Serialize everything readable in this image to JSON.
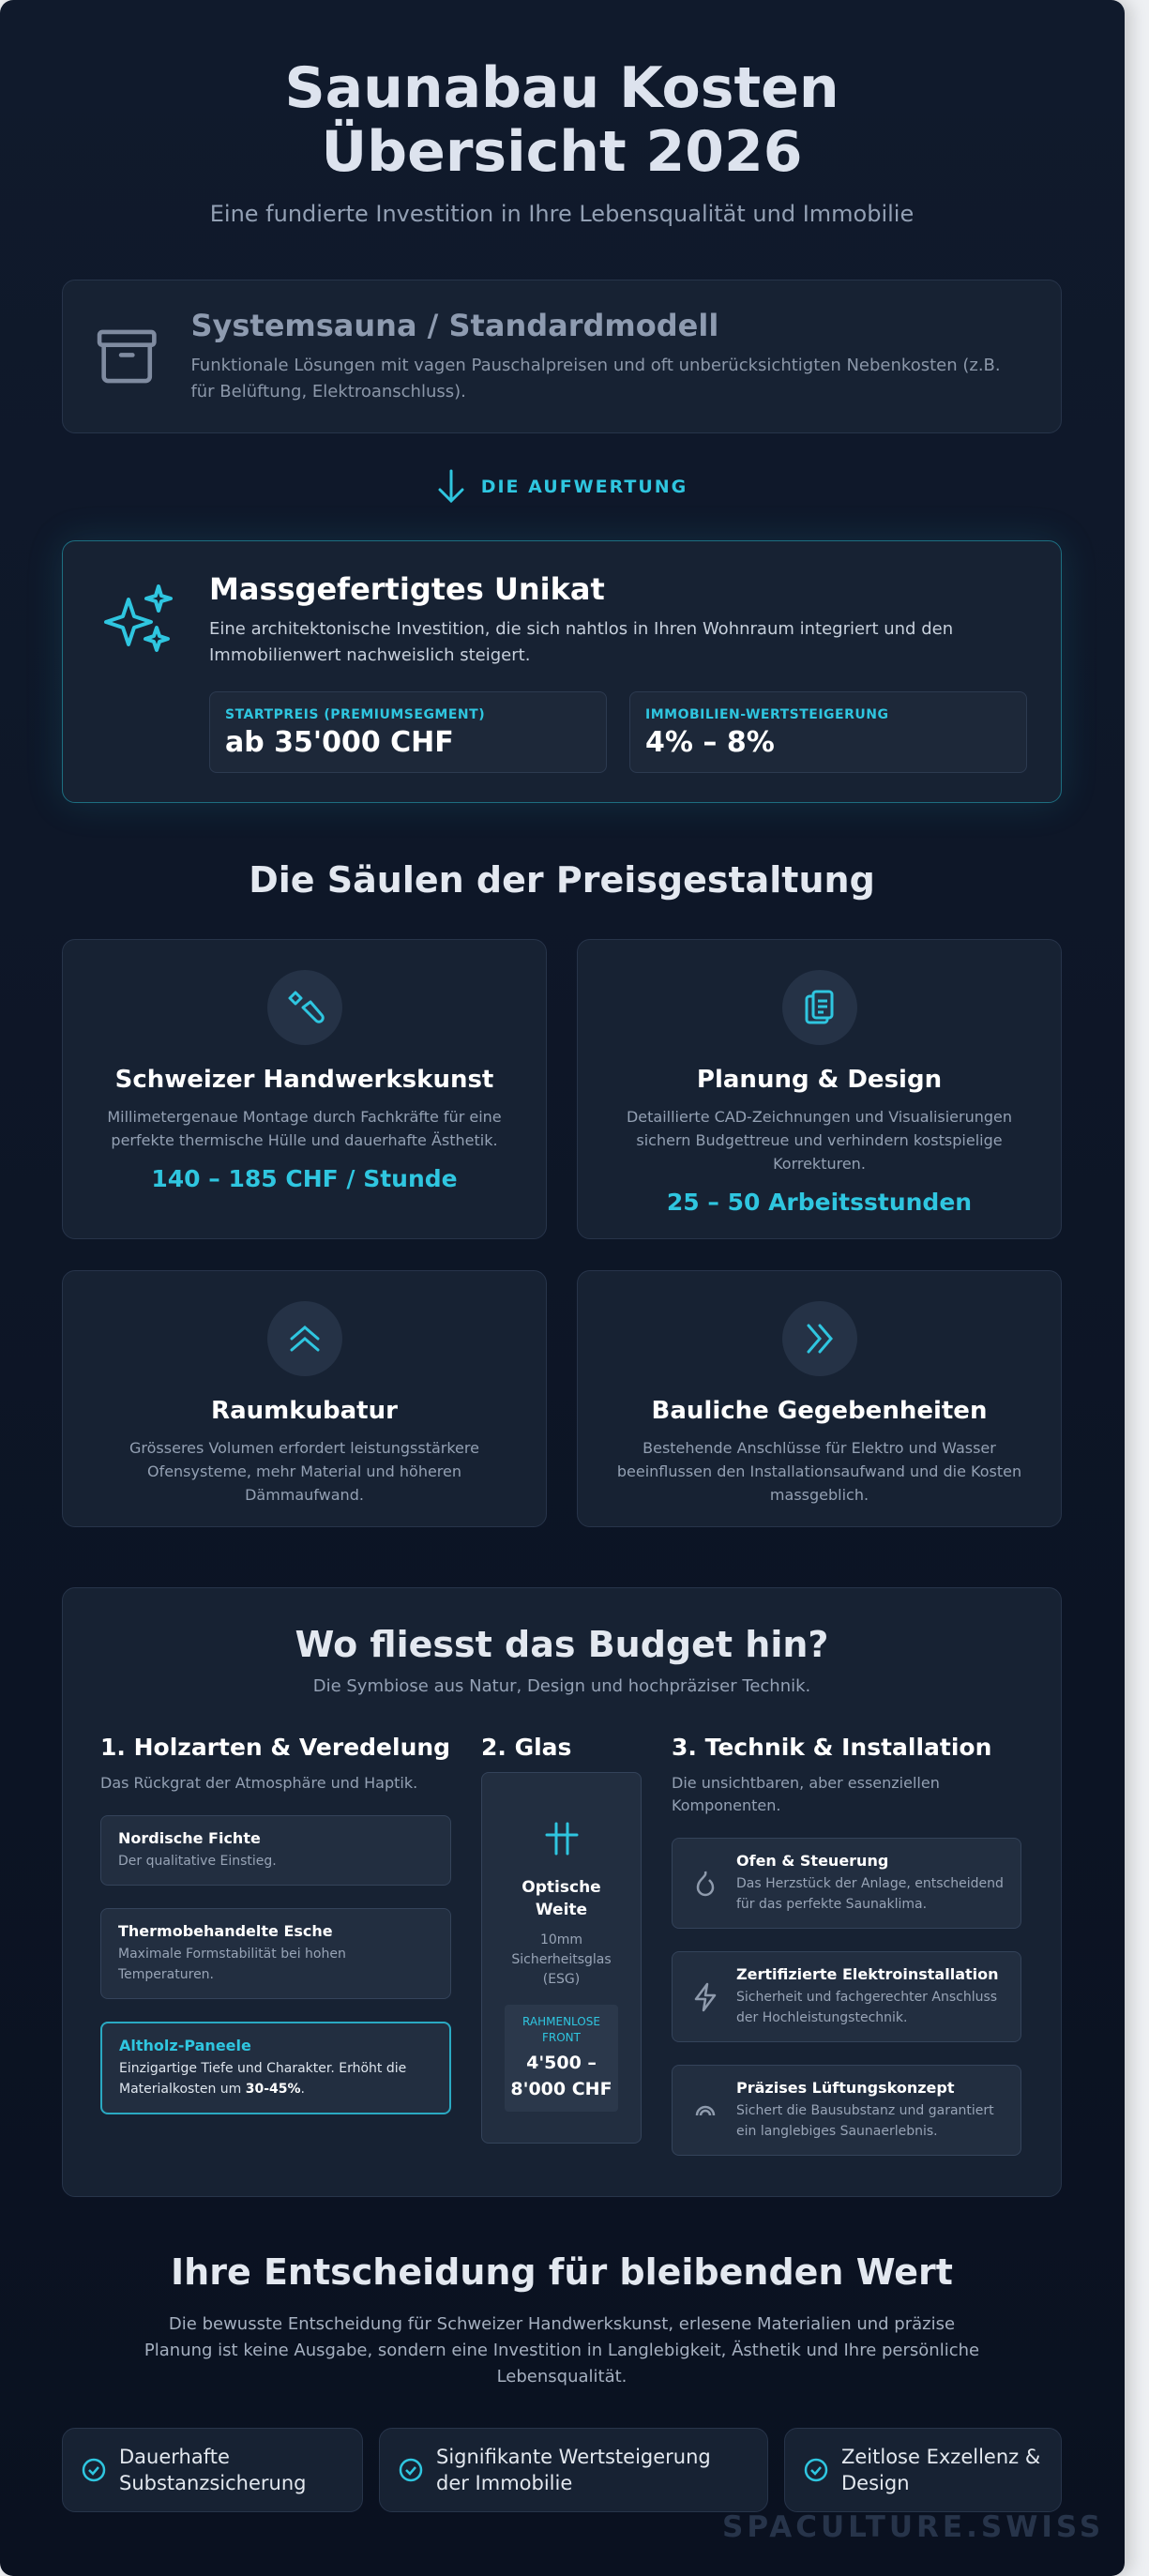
{
  "header": {
    "title": "Saunabau Kosten Übersicht 2026",
    "subtitle": "Eine fundierte Investition in Ihre Lebensqualität und Immobilie"
  },
  "standard": {
    "title": "Systemsauna / Standardmodell",
    "text": "Funktionale Lösungen mit vagen Pauschalpreisen und oft unberücksichtigten Nebenkosten (z.B. für Belüftung, Elektroanschluss)."
  },
  "divider": "DIE AUFWERTUNG",
  "custom": {
    "title": "Massgefertigtes Unikat",
    "text": "Eine architektonische Investition, die sich nahtlos in Ihren Wohnraum integriert und den Immobilienwert nachweislich steigert.",
    "stats": [
      {
        "label": "STARTPREIS (PREMIUMSEGMENT)",
        "value": "ab 35'000 CHF"
      },
      {
        "label": "IMMOBILIEN-WERTSTEIGERUNG",
        "value": "4% – 8%"
      }
    ]
  },
  "pillars": {
    "heading": "Die Säulen der Preisgestaltung",
    "items": [
      {
        "title": "Schweizer Handwerkskunst",
        "text": "Millimetergenaue Montage durch Fachkräfte für eine perfekte thermische Hülle und dauerhafte Ästhetik.",
        "value": "140 – 185 CHF / Stunde"
      },
      {
        "title": "Planung & Design",
        "text": "Detaillierte CAD-Zeichnungen und Visualisierungen sichern Budgettreue und verhindern kostspielige Korrekturen.",
        "value": "25 – 50 Arbeitsstunden"
      },
      {
        "title": "Raumkubatur",
        "text": "Grösseres Volumen erfordert leistungsstärkere Ofensysteme, mehr Material und höheren Dämmaufwand."
      },
      {
        "title": "Bauliche Gegebenheiten",
        "text": "Bestehende Anschlüsse für Elektro und Wasser beeinflussen den Installationsaufwand und die Kosten massgeblich."
      }
    ]
  },
  "budget": {
    "title": "Wo fliesst das Budget hin?",
    "subtitle": "Die Symbiose aus Natur, Design und hochpräziser Technik.",
    "wood": {
      "heading": "1. Holzarten & Veredelung",
      "text": "Das Rückgrat der Atmosphäre und Haptik.",
      "items": [
        {
          "title": "Nordische Fichte",
          "text": "Der qualitative Einstieg."
        },
        {
          "title": "Thermobehandelte Esche",
          "text": "Maximale Formstabilität bei hohen Temperaturen."
        },
        {
          "title": "Altholz-Paneele",
          "text_before": "Einzigartige Tiefe und Charakter. Erhöht die Materialkosten um ",
          "text_bold": "30-45%",
          "text_after": "."
        }
      ]
    },
    "glass": {
      "heading": "2. Glas",
      "title": "Optische Weite",
      "text": "10mm Sicherheitsglas (ESG)",
      "label": "RAHMENLOSE FRONT",
      "value": "4'500 – 8'000 CHF"
    },
    "tech": {
      "heading": "3. Technik & Installation",
      "text": "Die unsichtbaren, aber essenziellen Komponenten.",
      "items": [
        {
          "title": "Ofen & Steuerung",
          "text": "Das Herzstück der Anlage, entscheidend für das perfekte Saunaklima."
        },
        {
          "title": "Zertifizierte Elektroinstallation",
          "text": "Sicherheit und fachgerechter Anschluss der Hochleistungstechnik."
        },
        {
          "title": "Präzises Lüftungskonzept",
          "text": "Sichert die Bausubstanz und garantiert ein langlebiges Saunaerlebnis."
        }
      ]
    }
  },
  "final": {
    "title": "Ihre Entscheidung für bleibenden Wert",
    "text": "Die bewusste Entscheidung für Schweizer Handwerkskunst, erlesene Materialien und präzise Planung ist keine Ausgabe, sondern eine Investition in Langlebigkeit, Ästhetik und Ihre persönliche Lebensqualität.",
    "points": [
      "Dauerhafte Substanzsicherung",
      "Signifikante Wertsteigerung der Immobilie",
      "Zeitlose Exzellenz & Design"
    ]
  },
  "watermark": "SPACULTURE.SWISS"
}
